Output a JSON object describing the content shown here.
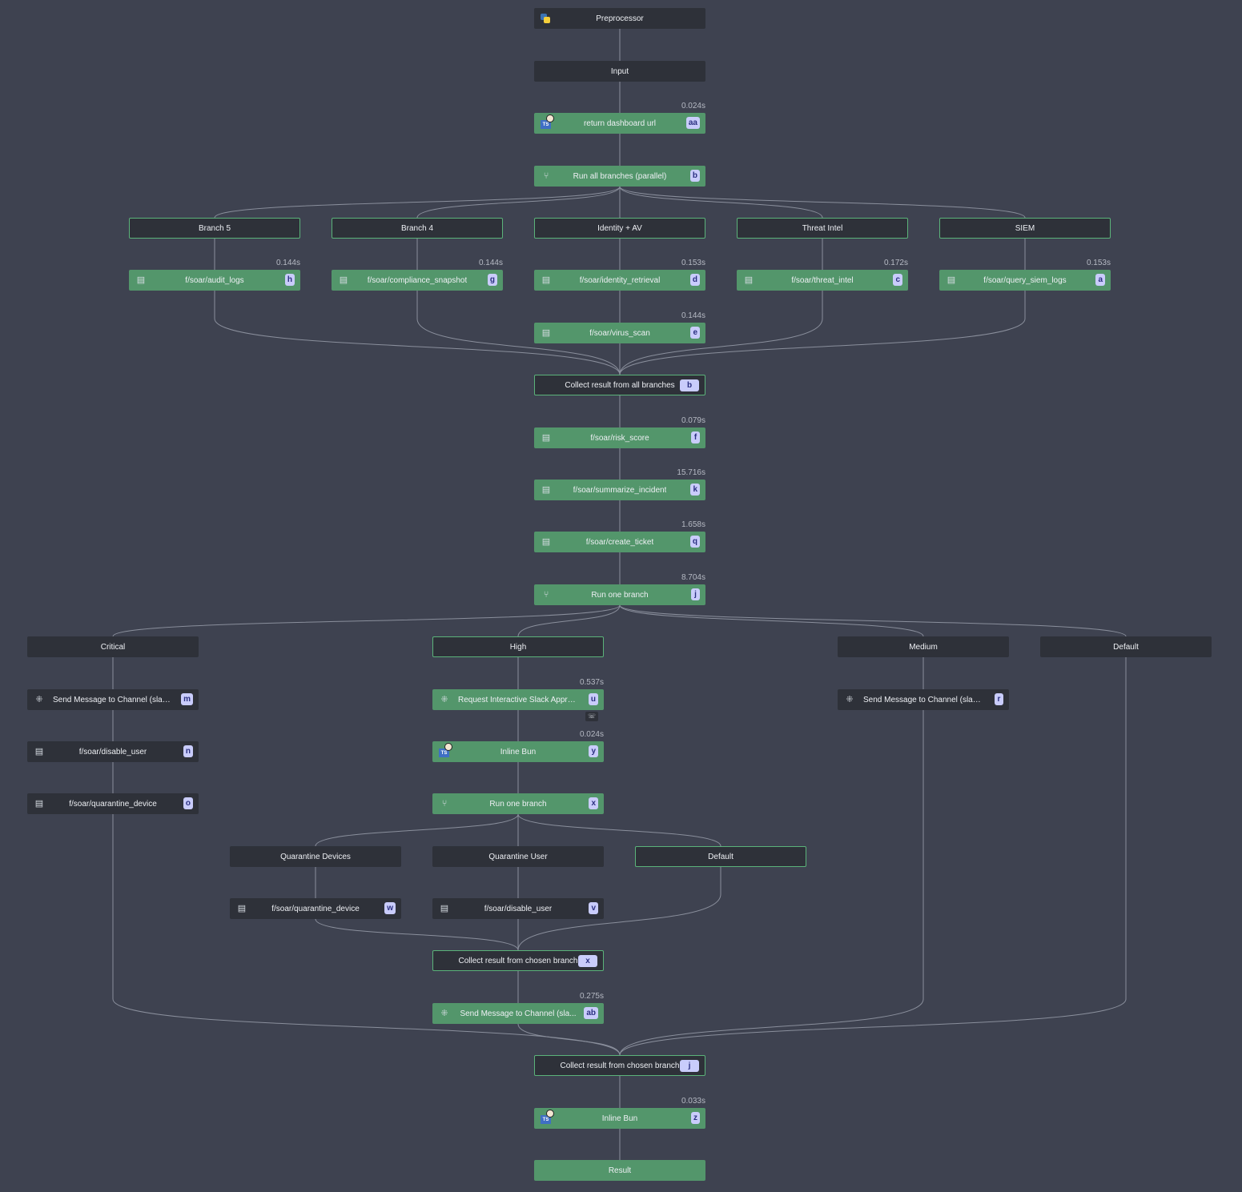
{
  "colors": {
    "background": "#3e4250",
    "success_node": "#53966b",
    "dark_node": "#2e3139",
    "selected_border": "#5bb37a",
    "badge": "#c9ccfb",
    "edge": "#8a8f9c"
  },
  "nodes": [
    {
      "id": "pre",
      "label": "Preprocessor",
      "kind": "dark",
      "icon": "python-icon"
    },
    {
      "id": "input",
      "label": "Input",
      "kind": "dark"
    },
    {
      "id": "aa",
      "label": "return dashboard url",
      "kind": "green",
      "icon": "typescript-bun-icon",
      "badge": "aa",
      "time": "0.024s"
    },
    {
      "id": "b",
      "label": "Run all branches (parallel)",
      "kind": "green",
      "icon": "branch-icon",
      "badge": "b"
    },
    {
      "id": "br5",
      "label": "Branch 5",
      "kind": "bordered"
    },
    {
      "id": "br4",
      "label": "Branch 4",
      "kind": "bordered"
    },
    {
      "id": "bid",
      "label": "Identity + AV",
      "kind": "bordered"
    },
    {
      "id": "bti",
      "label": "Threat Intel",
      "kind": "bordered"
    },
    {
      "id": "bsiem",
      "label": "SIEM",
      "kind": "bordered"
    },
    {
      "id": "h",
      "label": "f/soar/audit_logs",
      "kind": "green",
      "icon": "script-icon",
      "badge": "h",
      "time": "0.144s"
    },
    {
      "id": "g",
      "label": "f/soar/compliance_snapshot",
      "kind": "green",
      "icon": "script-icon",
      "badge": "g",
      "time": "0.144s"
    },
    {
      "id": "d",
      "label": "f/soar/identity_retrieval",
      "kind": "green",
      "icon": "script-icon",
      "badge": "d",
      "time": "0.153s"
    },
    {
      "id": "c",
      "label": "f/soar/threat_intel",
      "kind": "green",
      "icon": "script-icon",
      "badge": "c",
      "time": "0.172s"
    },
    {
      "id": "a",
      "label": "f/soar/query_siem_logs",
      "kind": "green",
      "icon": "script-icon",
      "badge": "a",
      "time": "0.153s"
    },
    {
      "id": "e",
      "label": "f/soar/virus_scan",
      "kind": "green",
      "icon": "script-icon",
      "badge": "e",
      "time": "0.144s"
    },
    {
      "id": "bc",
      "label": "Collect result from all branches",
      "kind": "bordered",
      "badge": "b"
    },
    {
      "id": "f",
      "label": "f/soar/risk_score",
      "kind": "green",
      "icon": "script-icon",
      "badge": "f",
      "time": "0.079s"
    },
    {
      "id": "k",
      "label": "f/soar/summarize_incident",
      "kind": "green",
      "icon": "script-icon",
      "badge": "k",
      "time": "15.716s"
    },
    {
      "id": "q",
      "label": "f/soar/create_ticket",
      "kind": "green",
      "icon": "script-icon",
      "badge": "q",
      "time": "1.658s"
    },
    {
      "id": "j",
      "label": "Run one branch",
      "kind": "green",
      "icon": "branch-icon",
      "badge": "j",
      "time": "8.704s"
    },
    {
      "id": "crit",
      "label": "Critical",
      "kind": "dark"
    },
    {
      "id": "high",
      "label": "High",
      "kind": "bordered"
    },
    {
      "id": "med",
      "label": "Medium",
      "kind": "dark"
    },
    {
      "id": "def",
      "label": "Default",
      "kind": "dark"
    },
    {
      "id": "m",
      "label": "Send Message to Channel (slack)",
      "kind": "dark",
      "icon": "slack-icon",
      "badge": "m"
    },
    {
      "id": "u",
      "label": "Request Interactive Slack Appro...",
      "kind": "green",
      "icon": "slack-icon",
      "badge": "u",
      "time": "0.537s",
      "extra": "phone-icon"
    },
    {
      "id": "r",
      "label": "Send Message to Channel (slack)",
      "kind": "dark",
      "icon": "slack-icon",
      "badge": "r"
    },
    {
      "id": "n",
      "label": "f/soar/disable_user",
      "kind": "dark",
      "icon": "script-icon",
      "badge": "n"
    },
    {
      "id": "y",
      "label": "Inline Bun",
      "kind": "green",
      "icon": "typescript-bun-icon",
      "badge": "y",
      "time": "0.024s"
    },
    {
      "id": "o",
      "label": "f/soar/quarantine_device",
      "kind": "dark",
      "icon": "script-icon",
      "badge": "o"
    },
    {
      "id": "x",
      "label": "Run one branch",
      "kind": "green",
      "icon": "branch-icon",
      "badge": "x"
    },
    {
      "id": "qd",
      "label": "Quarantine Devices",
      "kind": "dark"
    },
    {
      "id": "qu",
      "label": "Quarantine User",
      "kind": "dark"
    },
    {
      "id": "xdef",
      "label": "Default",
      "kind": "bordered"
    },
    {
      "id": "w",
      "label": "f/soar/quarantine_device",
      "kind": "dark",
      "icon": "script-icon",
      "badge": "w"
    },
    {
      "id": "v",
      "label": "f/soar/disable_user",
      "kind": "dark",
      "icon": "script-icon",
      "badge": "v"
    },
    {
      "id": "xc",
      "label": "Collect result from chosen branch",
      "kind": "bordered",
      "badge": "x"
    },
    {
      "id": "ab",
      "label": "Send Message to Channel (sla...",
      "kind": "green",
      "icon": "slack-icon",
      "badge": "ab",
      "time": "0.275s"
    },
    {
      "id": "jc",
      "label": "Collect result from chosen branch",
      "kind": "bordered",
      "badge": "j"
    },
    {
      "id": "z",
      "label": "Inline Bun",
      "kind": "green",
      "icon": "typescript-bun-icon",
      "badge": "z",
      "time": "0.033s"
    },
    {
      "id": "result",
      "label": "Result",
      "kind": "green"
    }
  ],
  "edges": [
    [
      "pre",
      "input"
    ],
    [
      "input",
      "aa"
    ],
    [
      "aa",
      "b"
    ],
    [
      "b",
      "br5"
    ],
    [
      "b",
      "br4"
    ],
    [
      "b",
      "bid"
    ],
    [
      "b",
      "bti"
    ],
    [
      "b",
      "bsiem"
    ],
    [
      "br5",
      "h"
    ],
    [
      "br4",
      "g"
    ],
    [
      "bid",
      "d"
    ],
    [
      "bti",
      "c"
    ],
    [
      "bsiem",
      "a"
    ],
    [
      "d",
      "e"
    ],
    [
      "h",
      "bc"
    ],
    [
      "g",
      "bc"
    ],
    [
      "e",
      "bc"
    ],
    [
      "c",
      "bc"
    ],
    [
      "a",
      "bc"
    ],
    [
      "bc",
      "f"
    ],
    [
      "f",
      "k"
    ],
    [
      "k",
      "q"
    ],
    [
      "q",
      "j"
    ],
    [
      "j",
      "crit"
    ],
    [
      "j",
      "high"
    ],
    [
      "j",
      "med"
    ],
    [
      "j",
      "def"
    ],
    [
      "crit",
      "m"
    ],
    [
      "m",
      "n"
    ],
    [
      "n",
      "o"
    ],
    [
      "high",
      "u"
    ],
    [
      "u",
      "y"
    ],
    [
      "y",
      "x"
    ],
    [
      "med",
      "r"
    ],
    [
      "x",
      "qd"
    ],
    [
      "x",
      "qu"
    ],
    [
      "x",
      "xdef"
    ],
    [
      "qd",
      "w"
    ],
    [
      "qu",
      "v"
    ],
    [
      "w",
      "xc"
    ],
    [
      "v",
      "xc"
    ],
    [
      "xdef",
      "xc"
    ],
    [
      "xc",
      "ab"
    ],
    [
      "o",
      "jc"
    ],
    [
      "ab",
      "jc"
    ],
    [
      "r",
      "jc"
    ],
    [
      "def",
      "jc"
    ],
    [
      "jc",
      "z"
    ],
    [
      "z",
      "result"
    ]
  ]
}
